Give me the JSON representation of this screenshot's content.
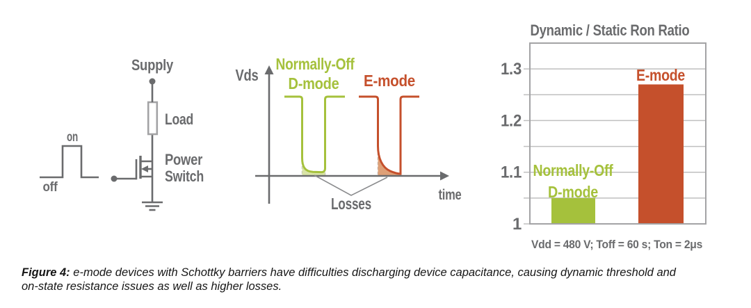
{
  "caption": {
    "label": "Figure 4:",
    "line1": " e-mode devices with Schottky barriers have difficulties discharging device capacitance, causing dynamic threshold and",
    "line2": "on-state resistance issues as well as higher losses."
  },
  "colors": {
    "gray": "#6a6b6d",
    "green": "#a5c13c",
    "green-fill": "#d9e4a6",
    "red": "#c5502c",
    "red-fill": "#dea077",
    "grid": "#bfbfbf",
    "frame": "#a3a3a5",
    "dash": "#b9b9b9",
    "leader": "#8a8b8d",
    "caption-text": "#161616"
  },
  "circuit": {
    "supply_label": "Supply",
    "load_label": "Load",
    "power_switch_label": [
      "Power",
      "Switch"
    ],
    "pulse": {
      "on_label": "on",
      "off_label": "off"
    }
  },
  "chart_data": [
    {
      "type": "line",
      "title": "",
      "xlabel": "time",
      "ylabel": "Vds",
      "annotation": "Losses",
      "series": [
        {
          "name": "Normally-Off D-mode",
          "label_lines": [
            "Normally-Off",
            "D-mode"
          ],
          "color": "#a5c13c",
          "shape": "Vds pulse: drops quickly to low on-state level, small shaded loss area at axis"
        },
        {
          "name": "E-mode",
          "label_lines": [
            "E-mode"
          ],
          "color": "#c5502c",
          "shape": "Vds pulse: decays slowly toward on-state level, larger shaded loss area at axis"
        }
      ]
    },
    {
      "type": "bar",
      "title": "Dynamic / Static Ron Ratio",
      "categories": [
        "Normally-Off D-mode",
        "E-mode"
      ],
      "values": [
        1.05,
        1.27
      ],
      "bar_colors": [
        "#a5c13c",
        "#c5502c"
      ],
      "bar_label_lines": [
        [
          "Normally-Off",
          "D-mode"
        ],
        [
          "E-mode"
        ]
      ],
      "ylim": [
        1.0,
        1.35
      ],
      "yticks": [
        1,
        1.1,
        1.2,
        1.3
      ],
      "ytick_labels": [
        "1",
        "1.1",
        "1.2",
        "1.3"
      ],
      "minor_grid_step": 0.05,
      "grid": true,
      "footnote": "Vdd = 480 V; Toff = 60 s; Ton = 2μs",
      "xlabel": "",
      "ylabel": ""
    }
  ]
}
